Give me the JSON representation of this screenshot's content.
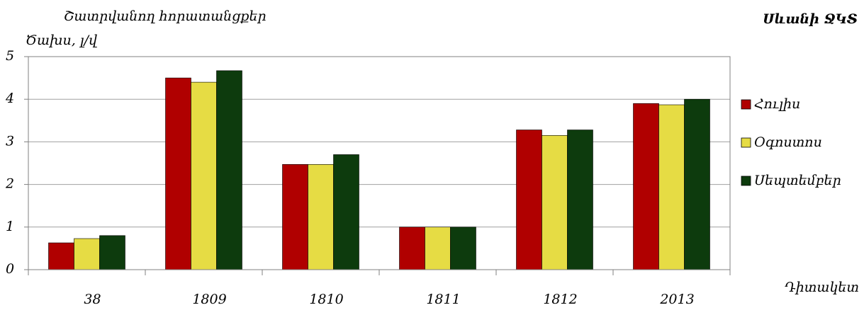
{
  "chart_data": {
    "type": "bar",
    "title": "Շատրվանող հորատանցքեր",
    "ylabel": "Ծախս, լ/վ",
    "annotation": "Սևանի ՋԿՏ",
    "xlabel": "Դիտակետ",
    "categories": [
      "38",
      "1809",
      "1810",
      "1811",
      "1812",
      "2013"
    ],
    "series": [
      {
        "name": "Հուլիս",
        "color": "#b00000",
        "values": [
          0.63,
          4.5,
          2.47,
          1.0,
          3.28,
          3.9
        ]
      },
      {
        "name": "Օգոստոս",
        "color": "#e6dc44",
        "values": [
          0.73,
          4.4,
          2.47,
          1.0,
          3.15,
          3.87
        ]
      },
      {
        "name": "Սեպտեմբեր",
        "color": "#0d3b0d",
        "values": [
          0.8,
          4.67,
          2.7,
          1.0,
          3.28,
          4.0
        ]
      }
    ],
    "ylim": [
      0,
      5
    ],
    "yticks": [
      0,
      1,
      2,
      3,
      4,
      5
    ],
    "grid": true,
    "legend": "right"
  }
}
